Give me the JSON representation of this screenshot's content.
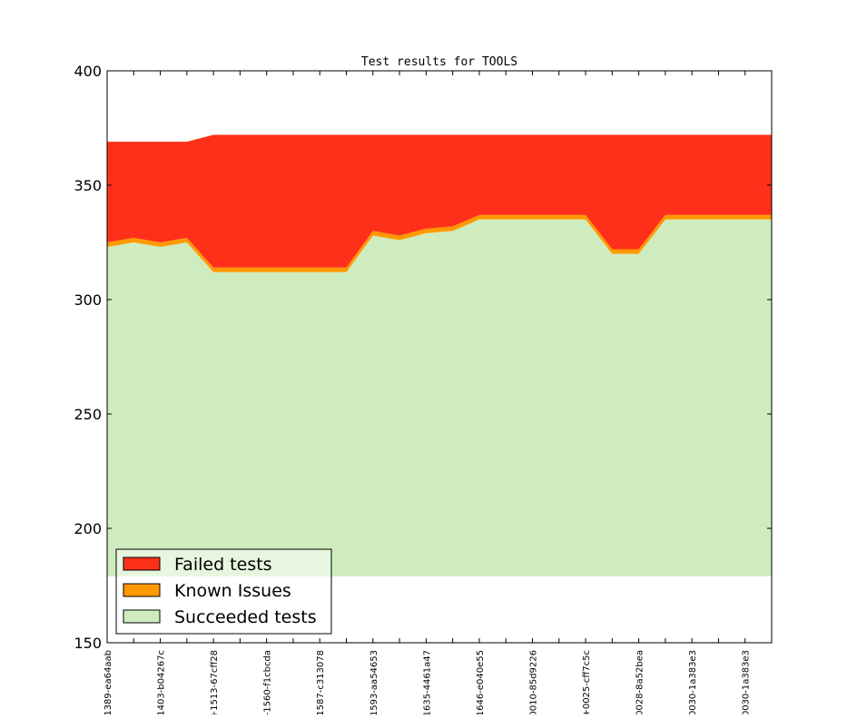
{
  "chart_data": {
    "type": "area",
    "title": "Test results for TOOLS",
    "xlabel": "",
    "ylabel": "",
    "ylim": [
      150,
      400
    ],
    "yticks": [
      150,
      200,
      250,
      300,
      350,
      400
    ],
    "stack_base": 179,
    "categories": [
      "1389-ea64aab",
      "",
      "1403-b04267c",
      "",
      "+1513-67cff28",
      "",
      "-1560-f1cbcda",
      "",
      "1587-c313078",
      "",
      "1593-aa54653",
      "",
      "1635-4461a47",
      "",
      "1646-e040e55",
      "",
      "0010-85d9226",
      "",
      "+0025-cff7c5c",
      "",
      "0028-8a52bea",
      "",
      "0030-1a383e3",
      "",
      "0030-1a383e3",
      ""
    ],
    "series": [
      {
        "name": "Succeeded tests",
        "color": "#cfecbe",
        "values": [
          144,
          146,
          144,
          146,
          133,
          133,
          133,
          133,
          133,
          133,
          149,
          147,
          150,
          151,
          156,
          156,
          156,
          156,
          156,
          141,
          141,
          156,
          156,
          156,
          156,
          156
        ]
      },
      {
        "name": "Known Issues",
        "color": "#ff9900",
        "values": [
          2,
          2,
          2,
          2,
          2,
          2,
          2,
          2,
          2,
          2,
          2,
          2,
          2,
          2,
          2,
          2,
          2,
          2,
          2,
          2,
          2,
          2,
          2,
          2,
          2,
          2
        ]
      },
      {
        "name": "Failed tests",
        "color": "#ff3019",
        "values": [
          44,
          42,
          44,
          42,
          58,
          58,
          58,
          58,
          58,
          58,
          42,
          44,
          41,
          40,
          35,
          35,
          35,
          35,
          35,
          50,
          50,
          35,
          35,
          35,
          35,
          35
        ]
      }
    ],
    "legend_position": "lower-left",
    "grid": false
  }
}
